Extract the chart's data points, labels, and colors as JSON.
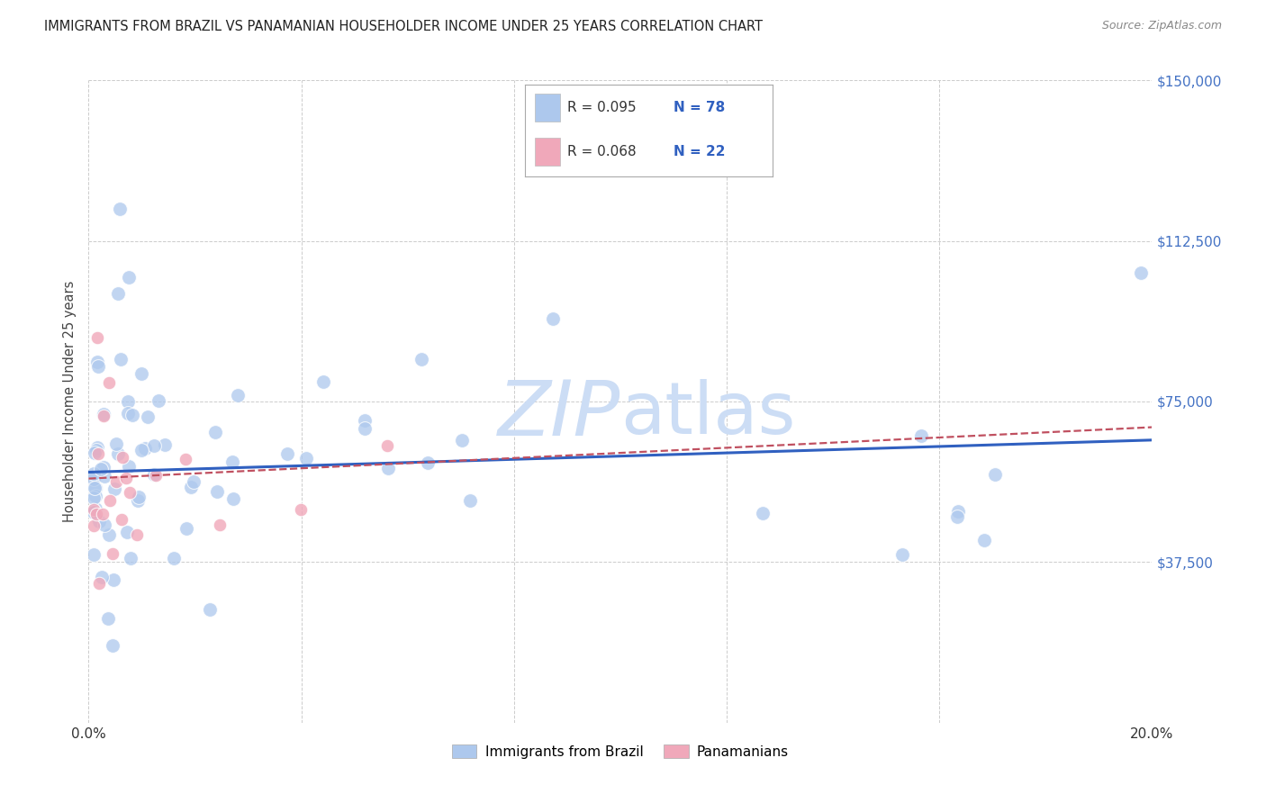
{
  "title": "IMMIGRANTS FROM BRAZIL VS PANAMANIAN HOUSEHOLDER INCOME UNDER 25 YEARS CORRELATION CHART",
  "source": "Source: ZipAtlas.com",
  "ylabel": "Householder Income Under 25 years",
  "xlim": [
    0.0,
    0.2
  ],
  "ylim": [
    0,
    150000
  ],
  "yticks": [
    0,
    37500,
    75000,
    112500,
    150000
  ],
  "ytick_labels": [
    "",
    "$37,500",
    "$75,000",
    "$112,500",
    "$150,000"
  ],
  "xticks": [
    0.0,
    0.04,
    0.08,
    0.12,
    0.16,
    0.2
  ],
  "xtick_labels": [
    "0.0%",
    "",
    "",
    "",
    "",
    "20.0%"
  ],
  "legend_label1": "Immigrants from Brazil",
  "legend_label2": "Panamanians",
  "r1_text": "R = 0.095",
  "n1_text": "N = 78",
  "r2_text": "R = 0.068",
  "n2_text": "N = 22",
  "color_brazil": "#adc8ed",
  "color_panama": "#f0a8ba",
  "line_color_brazil": "#3060c0",
  "line_color_panama": "#c05060",
  "watermark_color": "#ccddf5",
  "background_color": "#ffffff",
  "grid_color": "#cccccc",
  "title_color": "#222222",
  "source_color": "#888888",
  "axis_label_color": "#444444",
  "tick_color_right": "#4472c4"
}
